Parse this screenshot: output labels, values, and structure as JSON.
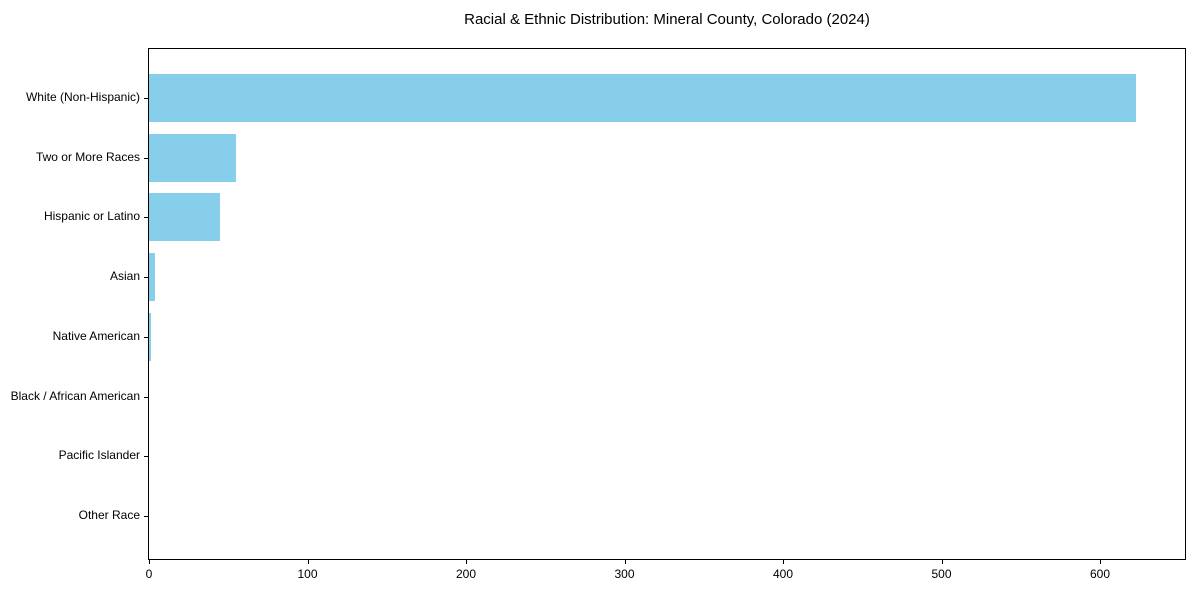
{
  "chart_data": {
    "type": "bar",
    "orientation": "horizontal",
    "title": "Racial & Ethnic Distribution: Mineral County, Colorado (2024)",
    "categories": [
      "White (Non-Hispanic)",
      "Two or More Races",
      "Hispanic or Latino",
      "Asian",
      "Native American",
      "Black / African American",
      "Pacific Islander",
      "Other Race"
    ],
    "values": [
      623,
      55,
      45,
      4,
      1,
      0,
      0,
      0
    ],
    "xlabel": "",
    "ylabel": "",
    "xlim": [
      0,
      654
    ],
    "x_ticks": [
      0,
      100,
      200,
      300,
      400,
      500,
      600
    ],
    "bar_color": "#87CEEB",
    "axis_color": "#000000",
    "text_color": "#000000",
    "background_color": "#FFFFFF",
    "grid": false,
    "legend": null
  }
}
